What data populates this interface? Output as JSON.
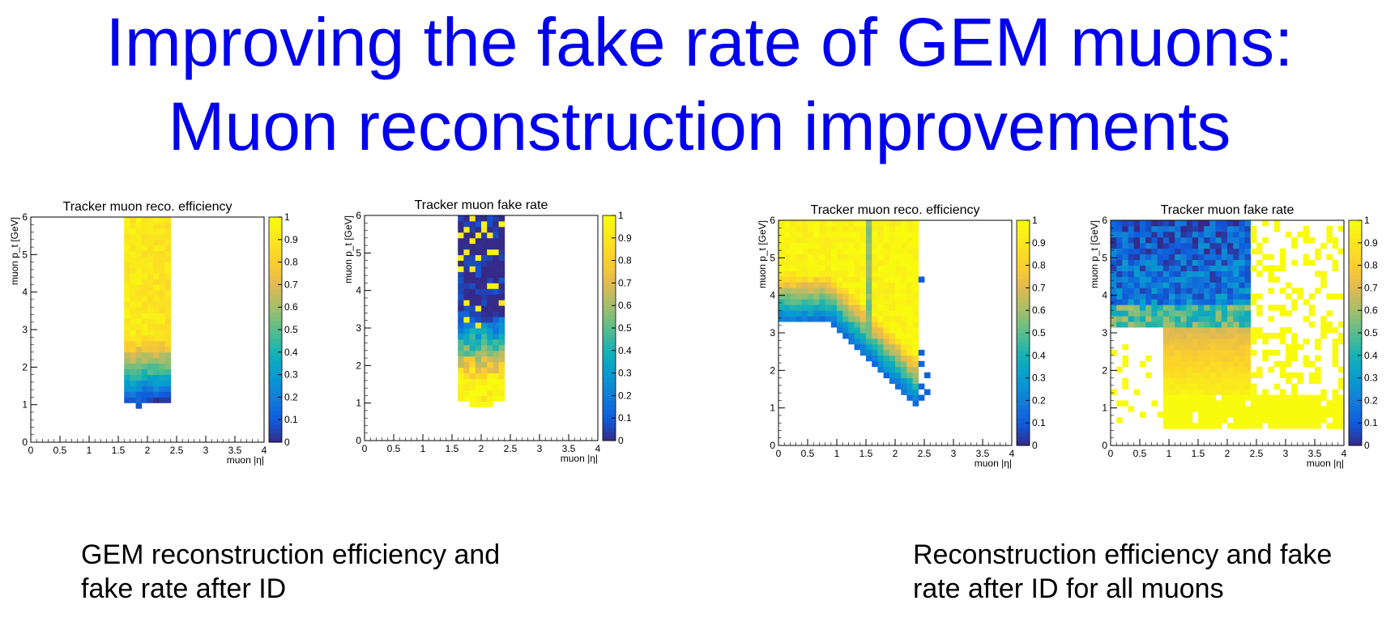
{
  "slide": {
    "title_line1": "Improving the fake rate of GEM muons:",
    "title_line2": "Muon reconstruction improvements",
    "caption_left_line1": "GEM reconstruction efficiency and",
    "caption_left_line2": "fake rate after ID",
    "caption_right_line1": "Reconstruction efficiency and fake",
    "caption_right_line2": "rate after ID for all muons"
  },
  "colors": {
    "title": "#0000ee",
    "text": "#000000",
    "palette": "viridis-like (dark blue to yellow)"
  },
  "chart_data": [
    {
      "type": "heatmap",
      "title": "Tracker muon reco. efficiency",
      "xlabel": "muon |η|",
      "ylabel": "muon p_t [GeV]",
      "xlim": [
        0,
        4
      ],
      "ylim": [
        0,
        6
      ],
      "zlim": [
        0,
        1
      ],
      "x_ticks": [
        "0",
        "0.5",
        "1",
        "1.5",
        "2",
        "2.5",
        "3",
        "3.5",
        "4"
      ],
      "y_ticks": [
        "0",
        "1",
        "2",
        "3",
        "4",
        "5",
        "6"
      ],
      "z_ticks": [
        "0",
        "0.1",
        "0.2",
        "0.3",
        "0.4",
        "0.5",
        "0.6",
        "0.7",
        "0.8",
        "0.9",
        "1"
      ],
      "eta_range_filled": [
        1.6,
        2.4
      ],
      "pt_range_filled": [
        1.1,
        6
      ],
      "description_of_values": "efficiency rises from ~0.1 near pt 1.1 GeV to ~0.9-1.0 above pt 3 GeV"
    },
    {
      "type": "heatmap",
      "title": "Tracker muon fake rate",
      "xlabel": "muon |η|",
      "ylabel": "muon p_t [GeV]",
      "xlim": [
        0,
        4
      ],
      "ylim": [
        0,
        6
      ],
      "zlim": [
        0,
        1
      ],
      "x_ticks": [
        "0",
        "0.5",
        "1",
        "1.5",
        "2",
        "2.5",
        "3",
        "3.5",
        "4"
      ],
      "y_ticks": [
        "0",
        "1",
        "2",
        "3",
        "4",
        "5",
        "6"
      ],
      "z_ticks": [
        "0",
        "0.1",
        "0.2",
        "0.3",
        "0.4",
        "0.5",
        "0.6",
        "0.7",
        "0.8",
        "0.9",
        "1"
      ],
      "eta_range_filled": [
        1.6,
        2.4
      ],
      "pt_range_filled": [
        0.9,
        6
      ],
      "description_of_values": "fake rate ~0.8-1.0 below pt 2 GeV, falls to ~0 above pt 3.5 GeV"
    },
    {
      "type": "heatmap",
      "title": "Tracker muon reco. efficiency",
      "xlabel": "muon |η|",
      "ylabel": "muon p_t [GeV]",
      "xlim": [
        0,
        4
      ],
      "ylim": [
        0,
        6
      ],
      "zlim": [
        0,
        1
      ],
      "x_ticks": [
        "0",
        "0.5",
        "1",
        "1.5",
        "2",
        "2.5",
        "3",
        "3.5",
        "4"
      ],
      "y_ticks": [
        "0",
        "1",
        "2",
        "3",
        "4",
        "5",
        "6"
      ],
      "z_ticks": [
        "0",
        "0.1",
        "0.2",
        "0.3",
        "0.4",
        "0.5",
        "0.6",
        "0.7",
        "0.8",
        "0.9",
        "1"
      ],
      "eta_range_filled": [
        0,
        2.4
      ],
      "pt_range_filled": [
        1,
        6
      ],
      "description_of_values": "efficiency ~0.9-1.0 over most of the range; turn-on edge from pt 3.3 at eta<0.9 to pt ~1.2 at eta 2.3; dip near eta 1.55"
    },
    {
      "type": "heatmap",
      "title": "Tracker muon fake rate",
      "xlabel": "muon |η|",
      "ylabel": "muon p_t [GeV]",
      "xlim": [
        0,
        4
      ],
      "ylim": [
        0,
        6
      ],
      "zlim": [
        0,
        1
      ],
      "x_ticks": [
        "0",
        "0.5",
        "1",
        "1.5",
        "2",
        "2.5",
        "3",
        "3.5",
        "4"
      ],
      "y_ticks": [
        "0",
        "1",
        "2",
        "3",
        "4",
        "5",
        "6"
      ],
      "z_ticks": [
        "0",
        "0.1",
        "0.2",
        "0.3",
        "0.4",
        "0.5",
        "0.6",
        "0.7",
        "0.8",
        "0.9",
        "1"
      ],
      "eta_range_filled": [
        0,
        4
      ],
      "pt_range_filled": [
        0.5,
        6
      ],
      "description_of_values": "fake rate ~0.1-0.3 for pt>3.2 GeV at eta<2.4; ~1.0 at low pt and for eta>2.4 (sparse)"
    }
  ]
}
